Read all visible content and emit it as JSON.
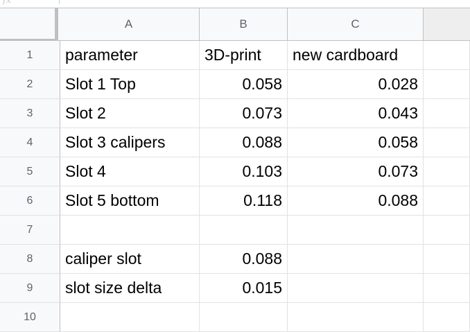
{
  "columns": [
    "A",
    "B",
    "C"
  ],
  "rows": [
    {
      "num": "1",
      "a": "parameter",
      "b": "3D-print",
      "c": "new cardboard"
    },
    {
      "num": "2",
      "a": "Slot 1 Top",
      "b": "0.058",
      "c": "0.028"
    },
    {
      "num": "3",
      "a": "Slot 2",
      "b": "0.073",
      "c": "0.043"
    },
    {
      "num": "4",
      "a": "Slot 3 calipers",
      "b": "0.088",
      "c": "0.058"
    },
    {
      "num": "5",
      "a": "Slot 4",
      "b": "0.103",
      "c": "0.073"
    },
    {
      "num": "6",
      "a": "Slot 5 bottom",
      "b": "0.118",
      "c": "0.088"
    },
    {
      "num": "7",
      "a": "",
      "b": "",
      "c": ""
    },
    {
      "num": "8",
      "a": "caliper slot",
      "b": "0.088",
      "c": ""
    },
    {
      "num": "9",
      "a": "slot size delta",
      "b": "0.015",
      "c": ""
    },
    {
      "num": "10",
      "a": "",
      "b": "",
      "c": ""
    }
  ]
}
